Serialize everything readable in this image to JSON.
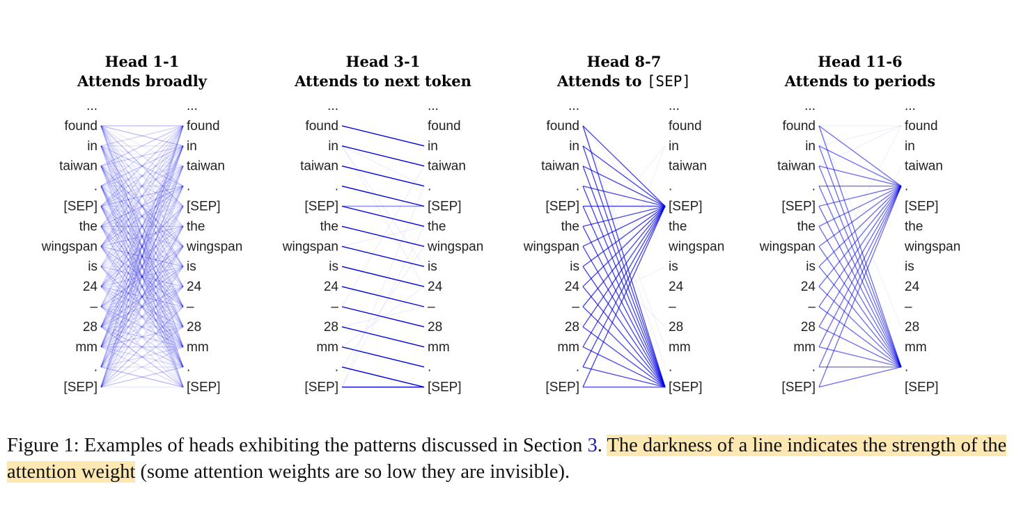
{
  "figure": {
    "tokens": [
      "...",
      "found",
      "in",
      "taiwan",
      ".",
      "[SEP]",
      "the",
      "wingspan",
      "is",
      "24",
      "–",
      "28",
      "mm",
      ".",
      "[SEP]"
    ],
    "line_color": "#0000e0",
    "heads": [
      {
        "title": "Head 1-1",
        "subtitle_pre": "Attends broadly",
        "subtitle_code": "",
        "pattern": "broad"
      },
      {
        "title": "Head 3-1",
        "subtitle_pre": "Attends to next token",
        "subtitle_code": "",
        "pattern": "next"
      },
      {
        "title": "Head 8-7",
        "subtitle_pre": "Attends to ",
        "subtitle_code": "[SEP]",
        "pattern": "sep"
      },
      {
        "title": "Head 11-6",
        "subtitle_pre": "Attends to periods",
        "subtitle_code": "",
        "pattern": "period"
      }
    ]
  },
  "caption": {
    "prefix": "Figure 1: Examples of heads exhibiting the patterns discussed in Section ",
    "section_ref": "3",
    "after_ref": ". ",
    "highlighted": "The darkness of a line indicates the strength of the attention weight",
    "suffix": " (some attention weights are so low they are invisible)."
  }
}
